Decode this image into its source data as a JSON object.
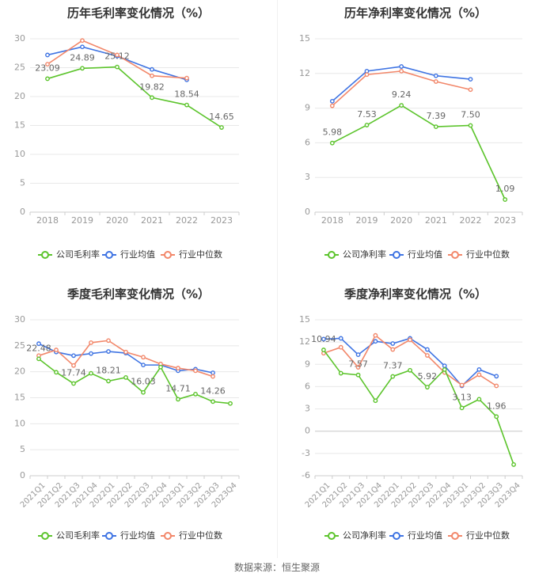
{
  "colors": {
    "company": "#5cc42c",
    "avg": "#3f74e3",
    "median": "#f2876a",
    "grid": "#e8e8e8",
    "axis": "#999999",
    "text": "#333333",
    "label": "#666666"
  },
  "source": "数据来源：恒生聚源",
  "chart_data": [
    {
      "type": "line",
      "title": "历年毛利率变化情况（%）",
      "categories": [
        "2018",
        "2019",
        "2020",
        "2021",
        "2022",
        "2023"
      ],
      "ylim": [
        0,
        30
      ],
      "yticks": [
        "0",
        "5",
        "10",
        "15",
        "20",
        "25",
        "30"
      ],
      "series": [
        {
          "name": "公司毛利率",
          "key": "company",
          "values": [
            23.09,
            24.89,
            25.12,
            19.82,
            18.54,
            14.65
          ],
          "labels": [
            "23.09",
            "24.89",
            "25.12",
            "19.82",
            "18.54",
            "14.65"
          ]
        },
        {
          "name": "行业均值",
          "key": "avg",
          "values": [
            27.2,
            28.6,
            27.0,
            24.7,
            22.9,
            null
          ]
        },
        {
          "name": "行业中位数",
          "key": "median",
          "values": [
            25.6,
            29.7,
            27.2,
            23.6,
            23.2,
            null
          ]
        }
      ]
    },
    {
      "type": "line",
      "title": "历年净利率变化情况（%）",
      "categories": [
        "2018",
        "2019",
        "2020",
        "2021",
        "2022",
        "2023"
      ],
      "ylim": [
        0,
        15
      ],
      "yticks": [
        "0",
        "3",
        "6",
        "9",
        "12",
        "15"
      ],
      "series": [
        {
          "name": "公司净利率",
          "key": "company",
          "values": [
            5.98,
            7.53,
            9.24,
            7.39,
            7.5,
            1.09
          ],
          "labels": [
            "5.98",
            "7.53",
            "9.24",
            "7.39",
            "7.50",
            "1.09"
          ]
        },
        {
          "name": "行业均值",
          "key": "avg",
          "values": [
            9.6,
            12.2,
            12.6,
            11.8,
            11.5,
            null
          ]
        },
        {
          "name": "行业中位数",
          "key": "median",
          "values": [
            9.2,
            11.9,
            12.2,
            11.3,
            10.6,
            null
          ]
        }
      ]
    },
    {
      "type": "line",
      "title": "季度毛利率变化情况（%）",
      "categories": [
        "2021Q1",
        "2021Q2",
        "2021Q3",
        "2021Q4",
        "2022Q1",
        "2022Q2",
        "2022Q3",
        "2022Q4",
        "2023Q1",
        "2023Q2",
        "2023Q3",
        "2023Q4"
      ],
      "ylim": [
        0,
        30
      ],
      "yticks": [
        "0",
        "5",
        "10",
        "15",
        "20",
        "25",
        "30"
      ],
      "series": [
        {
          "name": "公司毛利率",
          "key": "company",
          "values": [
            22.48,
            19.9,
            17.74,
            19.7,
            18.21,
            18.9,
            16.03,
            20.9,
            14.71,
            15.7,
            14.26,
            13.9
          ],
          "labels": [
            "22.48",
            "",
            "17.74",
            "",
            "18.21",
            "",
            "16.03",
            "",
            "14.71",
            "",
            "14.26",
            ""
          ]
        },
        {
          "name": "行业均值",
          "key": "avg",
          "values": [
            25.4,
            23.8,
            23.1,
            23.5,
            23.9,
            23.6,
            21.3,
            21.3,
            20.2,
            20.5,
            19.8,
            null
          ]
        },
        {
          "name": "行业中位数",
          "key": "median",
          "values": [
            23.1,
            24.2,
            21.2,
            25.6,
            26.0,
            23.8,
            22.8,
            21.5,
            20.7,
            20.2,
            19.1,
            null
          ]
        }
      ]
    },
    {
      "type": "line",
      "title": "季度净利率变化情况（%）",
      "categories": [
        "2021Q1",
        "2021Q2",
        "2021Q3",
        "2021Q4",
        "2022Q1",
        "2022Q2",
        "2022Q3",
        "2022Q4",
        "2023Q1",
        "2023Q2",
        "2023Q3",
        "2023Q4"
      ],
      "ylim": [
        -6,
        15
      ],
      "yticks": [
        "-6",
        "-3",
        "0",
        "3",
        "6",
        "9",
        "12",
        "15"
      ],
      "series": [
        {
          "name": "公司净利率",
          "key": "company",
          "values": [
            10.94,
            7.8,
            7.57,
            4.1,
            7.37,
            8.2,
            5.92,
            8.3,
            3.13,
            4.3,
            1.96,
            -4.5
          ],
          "labels": [
            "10.94",
            "",
            "7.57",
            "",
            "7.37",
            "",
            "5.92",
            "",
            "3.13",
            "",
            "1.96",
            ""
          ]
        },
        {
          "name": "行业均值",
          "key": "avg",
          "values": [
            12.4,
            12.5,
            10.3,
            12.1,
            11.8,
            12.5,
            11.0,
            8.8,
            6.1,
            8.3,
            7.4,
            null
          ]
        },
        {
          "name": "行业中位数",
          "key": "median",
          "values": [
            10.5,
            11.3,
            8.6,
            12.9,
            11.0,
            12.3,
            10.2,
            7.9,
            6.2,
            7.6,
            6.1,
            null
          ]
        }
      ]
    }
  ]
}
